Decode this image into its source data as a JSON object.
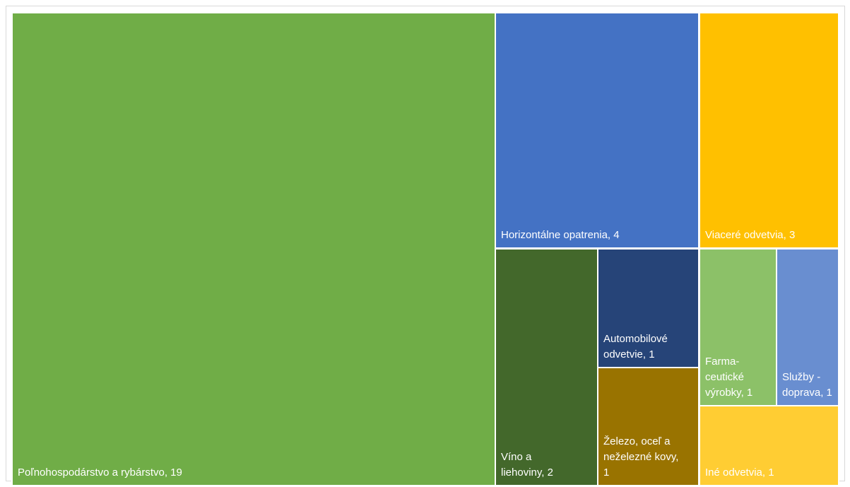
{
  "chart_data": {
    "type": "treemap",
    "title": "",
    "items": [
      {
        "id": "agri",
        "label": "Poľnohospodárstvo a rybárstvo, 19",
        "display": "Poľnohospodárstvo a rybárstvo, 19",
        "value": 19,
        "color": "#70AD47"
      },
      {
        "id": "horiz",
        "label": "Horizontálne opatrenia, 4",
        "display": "Horizontálne opatrenia, 4",
        "value": 4,
        "color": "#4472C4"
      },
      {
        "id": "multi",
        "label": "Viaceré odvetvia, 3",
        "display": "Viaceré odvetvia, 3",
        "value": 3,
        "color": "#FFC000"
      },
      {
        "id": "wine",
        "label": "Víno a liehoviny, 2",
        "display": "Víno a\nliehoviny, 2",
        "value": 2,
        "color": "#43682B"
      },
      {
        "id": "auto",
        "label": "Automobilové odvetvie, 1",
        "display": "Automobilové\nodvetvie, 1",
        "value": 1,
        "color": "#264478"
      },
      {
        "id": "steel",
        "label": "Železo, oceľ a neželezné kovy, 1",
        "display": "Železo, oceľ a\nneželezné kovy,\n1",
        "value": 1,
        "color": "#997300"
      },
      {
        "id": "pharma",
        "label": "Farma-ceutické výrobky, 1",
        "display": "Farma-\nceutické\nvýrobky, 1",
        "value": 1,
        "color": "#8CC168"
      },
      {
        "id": "transp",
        "label": "Služby - doprava, 1",
        "display": "Služby -\ndoprava, 1",
        "value": 1,
        "color": "#698ED0"
      },
      {
        "id": "other",
        "label": "Iné odvetvia, 1",
        "display": "Iné odvetvia, 1",
        "value": 1,
        "color": "#FFCD33"
      }
    ]
  }
}
